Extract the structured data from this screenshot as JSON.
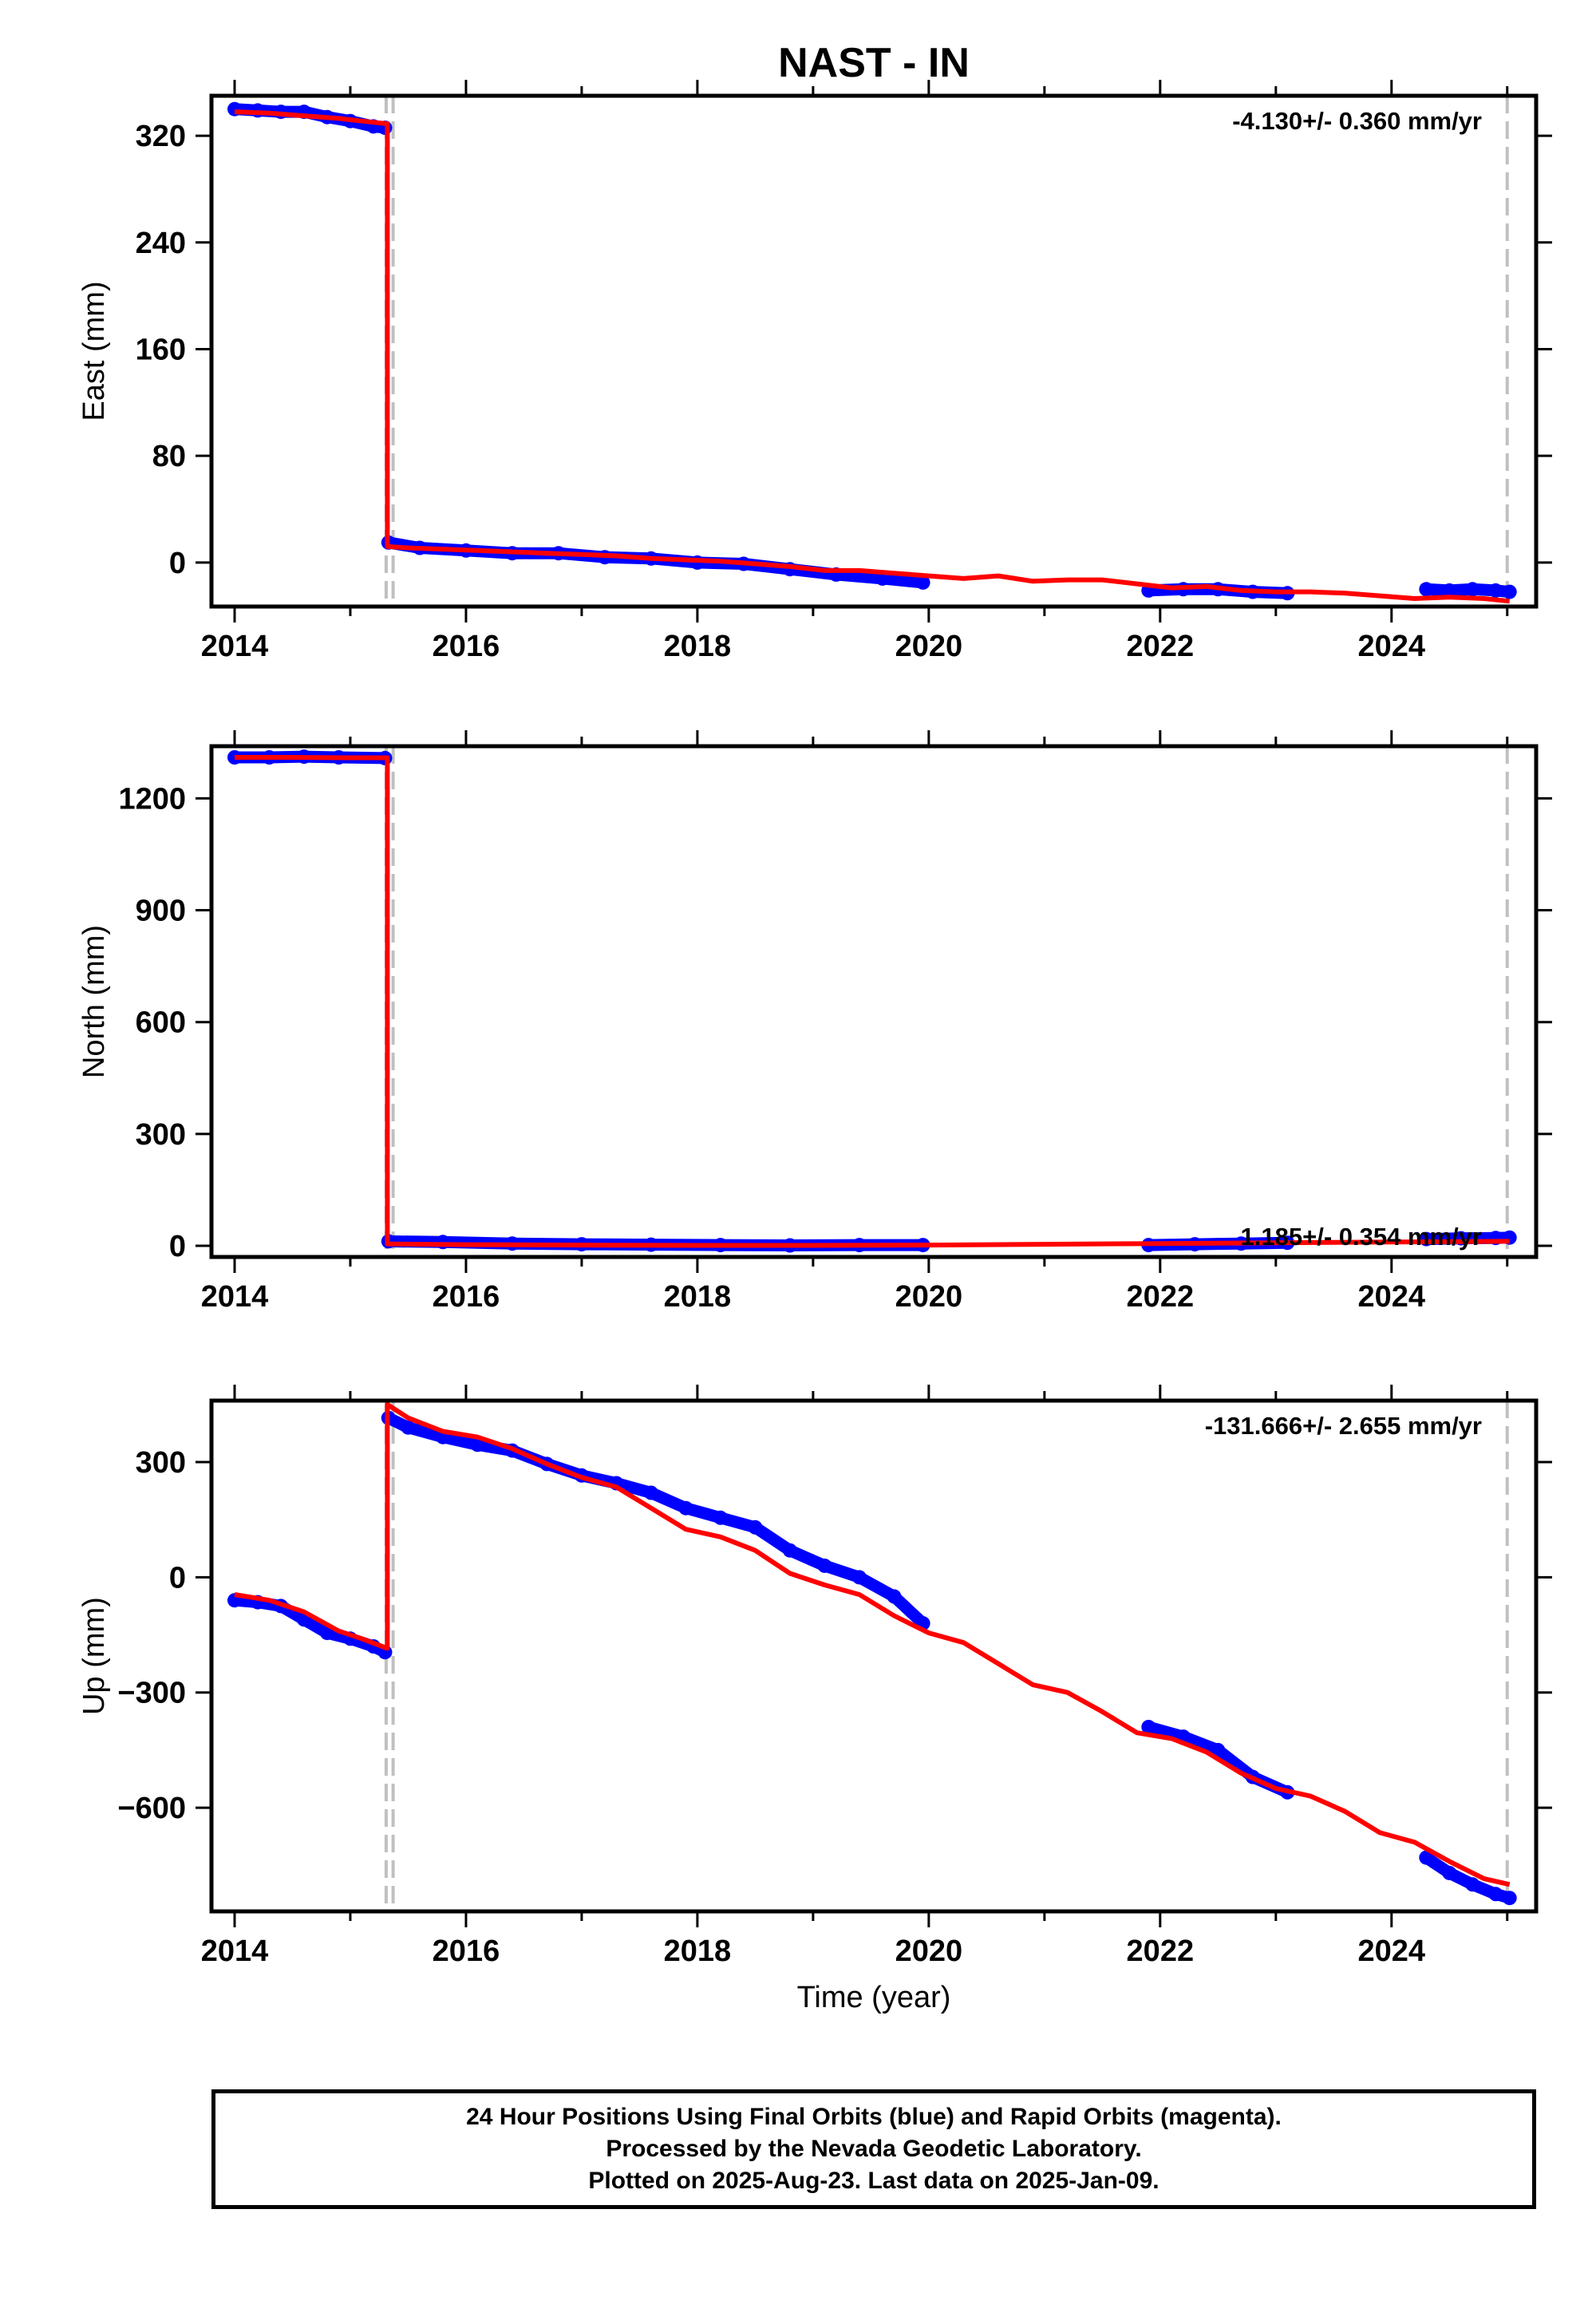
{
  "title": "NAST - IN",
  "xlabel": "Time (year)",
  "footer": {
    "line1": "24 Hour Positions Using Final Orbits (blue) and Rapid Orbits (magenta).",
    "line2": "Processed by the Nevada Geodetic Laboratory.",
    "line3": "Plotted on 2025-Aug-23. Last data on 2025-Jan-09."
  },
  "colors": {
    "data": "#0000ff",
    "model": "#ff0000",
    "event": "#c0c0c0",
    "axis": "#000000"
  },
  "chart_data": [
    {
      "type": "scatter",
      "panel": "east",
      "ylabel": "East (mm)",
      "velocity_label": "-4.130+/- 0.360 mm/yr",
      "velocity_placement": "top-right",
      "xlim": [
        2013.8,
        2025.25
      ],
      "ylim": [
        -33,
        350
      ],
      "xticks": [
        2014,
        2016,
        2018,
        2020,
        2022,
        2024
      ],
      "xtick_labels": [
        "2014",
        "2016",
        "2018",
        "2020",
        "2022",
        "2024"
      ],
      "yticks": [
        0,
        80,
        160,
        240,
        320
      ],
      "ytick_labels": [
        "0",
        "80",
        "160",
        "240",
        "320"
      ],
      "events": [
        2015.31,
        2015.37,
        2025.0
      ],
      "series": [
        {
          "role": "data",
          "segments": [
            {
              "x": [
                2014.0,
                2014.2,
                2014.4,
                2014.6,
                2014.8,
                2015.0,
                2015.2,
                2015.3
              ],
              "y": [
                340,
                339,
                338,
                338,
                334,
                331,
                327,
                326
              ]
            },
            {
              "x": [
                2015.33,
                2015.6,
                2016.0,
                2016.4,
                2016.8,
                2017.2,
                2017.6,
                2018.0,
                2018.4,
                2018.8,
                2019.2,
                2019.6,
                2019.95
              ],
              "y": [
                15,
                11,
                9,
                7,
                7,
                4,
                3,
                0,
                -1,
                -5,
                -9,
                -12,
                -15
              ]
            },
            {
              "x": [
                2021.9,
                2022.2,
                2022.5,
                2022.8,
                2023.1
              ],
              "y": [
                -21,
                -20,
                -20,
                -22,
                -23
              ]
            },
            {
              "x": [
                2024.3,
                2024.5,
                2024.7,
                2024.9,
                2025.02
              ],
              "y": [
                -20,
                -21,
                -20,
                -21,
                -22
              ]
            }
          ]
        },
        {
          "role": "model",
          "segments": [
            {
              "x": [
                2014.0,
                2014.3,
                2014.6,
                2014.9,
                2015.1,
                2015.32
              ],
              "y": [
                338,
                337,
                335,
                333,
                331,
                329
              ]
            },
            {
              "x": [
                2015.32,
                2015.5,
                2015.8,
                2016.1,
                2016.4,
                2016.7,
                2017.0,
                2017.3,
                2017.6,
                2017.9,
                2018.2,
                2018.5,
                2018.8,
                2019.1,
                2019.4,
                2019.7,
                2020.0,
                2020.3,
                2020.6,
                2020.9,
                2021.2,
                2021.5,
                2021.8,
                2022.1,
                2022.4,
                2022.7,
                2023.0,
                2023.3,
                2023.6,
                2023.9,
                2024.2,
                2024.5,
                2024.8,
                2025.02
              ],
              "y": [
                12,
                11,
                10,
                9,
                8,
                7,
                6,
                5,
                3,
                2,
                1,
                -1,
                -3,
                -6,
                -6,
                -8,
                -10,
                -12,
                -10,
                -14,
                -13,
                -13,
                -16,
                -19,
                -18,
                -21,
                -22,
                -22,
                -23,
                -25,
                -27,
                -26,
                -27,
                -29
              ]
            }
          ]
        }
      ]
    },
    {
      "type": "scatter",
      "panel": "north",
      "ylabel": "North (mm)",
      "velocity_label": "1.185+/- 0.354 mm/yr",
      "velocity_placement": "bottom-right",
      "xlim": [
        2013.8,
        2025.25
      ],
      "ylim": [
        -30,
        1340
      ],
      "xticks": [
        2014,
        2016,
        2018,
        2020,
        2022,
        2024
      ],
      "xtick_labels": [
        "2014",
        "2016",
        "2018",
        "2020",
        "2022",
        "2024"
      ],
      "yticks": [
        0,
        300,
        600,
        900,
        1200
      ],
      "ytick_labels": [
        "0",
        "300",
        "600",
        "900",
        "1200"
      ],
      "events": [
        2015.31,
        2015.37,
        2025.0
      ],
      "series": [
        {
          "role": "data",
          "segments": [
            {
              "x": [
                2014.0,
                2014.3,
                2014.6,
                2014.9,
                2015.3
              ],
              "y": [
                1310,
                1310,
                1312,
                1310,
                1308
              ]
            },
            {
              "x": [
                2015.33,
                2015.8,
                2016.4,
                2017.0,
                2017.6,
                2018.2,
                2018.8,
                2019.4,
                2019.95
              ],
              "y": [
                12,
                10,
                6,
                4,
                3,
                2,
                1,
                2,
                2
              ]
            },
            {
              "x": [
                2021.9,
                2022.3,
                2022.7,
                2023.1
              ],
              "y": [
                2,
                4,
                6,
                8
              ]
            },
            {
              "x": [
                2024.3,
                2024.6,
                2024.9,
                2025.02
              ],
              "y": [
                18,
                20,
                21,
                22
              ]
            }
          ]
        },
        {
          "role": "model",
          "segments": [
            {
              "x": [
                2014.0,
                2014.5,
                2015.0,
                2015.32
              ],
              "y": [
                1310,
                1310,
                1309,
                1309
              ]
            },
            {
              "x": [
                2015.32,
                2016.0,
                2017.0,
                2018.0,
                2019.0,
                2020.0,
                2021.0,
                2022.0,
                2023.0,
                2024.0,
                2025.02
              ],
              "y": [
                5,
                3,
                2,
                1,
                1,
                2,
                4,
                6,
                8,
                10,
                12
              ]
            }
          ]
        }
      ]
    },
    {
      "type": "scatter",
      "panel": "up",
      "ylabel": "Up (mm)",
      "velocity_label": "-131.666+/- 2.655 mm/yr",
      "velocity_placement": "top-right",
      "xlim": [
        2013.8,
        2025.25
      ],
      "ylim": [
        -870,
        460
      ],
      "xticks": [
        2014,
        2016,
        2018,
        2020,
        2022,
        2024
      ],
      "xtick_labels": [
        "2014",
        "2016",
        "2018",
        "2020",
        "2022",
        "2024"
      ],
      "yticks": [
        -600,
        -300,
        0,
        300
      ],
      "ytick_labels": [
        "−600",
        "−300",
        "0",
        "300"
      ],
      "events": [
        2015.31,
        2015.37,
        2025.0
      ],
      "series": [
        {
          "role": "data",
          "segments": [
            {
              "x": [
                2014.0,
                2014.2,
                2014.4,
                2014.6,
                2014.8,
                2015.0,
                2015.2,
                2015.3
              ],
              "y": [
                -60,
                -65,
                -75,
                -110,
                -145,
                -160,
                -180,
                -195
              ]
            },
            {
              "x": [
                2015.33,
                2015.5,
                2015.8,
                2016.1,
                2016.4,
                2016.7,
                2017.0,
                2017.3,
                2017.6,
                2017.9,
                2018.2,
                2018.5,
                2018.8,
                2019.1,
                2019.4,
                2019.7,
                2019.95
              ],
              "y": [
                415,
                390,
                365,
                345,
                330,
                295,
                265,
                245,
                220,
                180,
                155,
                130,
                70,
                30,
                0,
                -50,
                -120
              ]
            },
            {
              "x": [
                2021.9,
                2022.2,
                2022.5,
                2022.8,
                2023.1
              ],
              "y": [
                -390,
                -415,
                -450,
                -520,
                -560
              ]
            },
            {
              "x": [
                2024.3,
                2024.5,
                2024.7,
                2024.9,
                2025.02
              ],
              "y": [
                -730,
                -770,
                -800,
                -825,
                -835
              ]
            }
          ]
        },
        {
          "role": "model",
          "segments": [
            {
              "x": [
                2014.0,
                2014.3,
                2014.6,
                2014.9,
                2015.1,
                2015.32
              ],
              "y": [
                -45,
                -60,
                -90,
                -140,
                -160,
                -185
              ]
            },
            {
              "x": [
                2015.32,
                2015.5,
                2015.8,
                2016.1,
                2016.4,
                2016.7,
                2017.0,
                2017.3,
                2017.6,
                2017.9,
                2018.2,
                2018.5,
                2018.8,
                2019.1,
                2019.4,
                2019.7,
                2020.0,
                2020.3,
                2020.6,
                2020.9,
                2021.2,
                2021.5,
                2021.8,
                2022.1,
                2022.4,
                2022.7,
                2023.0,
                2023.3,
                2023.6,
                2023.9,
                2024.2,
                2024.5,
                2024.8,
                2025.02
              ],
              "y": [
                450,
                415,
                380,
                365,
                335,
                295,
                260,
                235,
                180,
                125,
                105,
                70,
                10,
                -20,
                -45,
                -100,
                -145,
                -170,
                -225,
                -280,
                -300,
                -350,
                -405,
                -420,
                -455,
                -510,
                -550,
                -570,
                -610,
                -665,
                -690,
                -740,
                -785,
                -800
              ]
            }
          ]
        }
      ]
    }
  ]
}
